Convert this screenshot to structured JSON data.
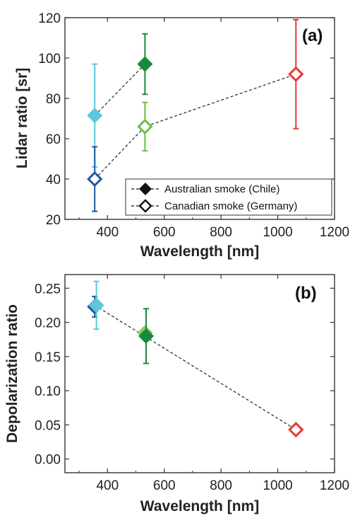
{
  "chart_data": [
    {
      "type": "scatter",
      "panel_label": "(a)",
      "xlabel": "Wavelength [nm]",
      "ylabel": "Lidar ratio [sr]",
      "xlim": [
        250,
        1200
      ],
      "ylim": [
        20,
        120
      ],
      "xticks": [
        400,
        600,
        800,
        1000,
        1200
      ],
      "yticks": [
        20,
        40,
        60,
        80,
        100,
        120
      ],
      "legend_position": "bottom-right",
      "series": [
        {
          "name": "Australian smoke (Chile)",
          "marker": "filled-diamond",
          "line": "dashed",
          "points": [
            {
              "x": 355,
              "y": 71.5,
              "err": 25.5,
              "color": "#5bc8dc"
            },
            {
              "x": 532,
              "y": 97,
              "err": 15,
              "color": "#178a3e"
            }
          ]
        },
        {
          "name": "Canadian smoke (Germany)",
          "marker": "open-diamond",
          "line": "dashed",
          "points": [
            {
              "x": 355,
              "y": 40,
              "err": 16,
              "color": "#2056a8"
            },
            {
              "x": 532,
              "y": 66,
              "err": 12,
              "color": "#6abf45"
            },
            {
              "x": 1064,
              "y": 92,
              "err": 27,
              "color": "#e53935"
            }
          ]
        }
      ]
    },
    {
      "type": "scatter",
      "panel_label": "(b)",
      "xlabel": "Wavelength [nm]",
      "ylabel": "Depolarization ratio",
      "xlim": [
        250,
        1200
      ],
      "ylim": [
        -0.02,
        0.27
      ],
      "xticks": [
        400,
        600,
        800,
        1000,
        1200
      ],
      "yticks": [
        "0.00",
        "0.05",
        "0.10",
        "0.15",
        "0.20",
        "0.25"
      ],
      "series": [
        {
          "name": "Australian smoke (Chile)",
          "marker": "filled-diamond",
          "line": "none",
          "points": [
            {
              "x": 355,
              "y": 0.223,
              "err": 0.015,
              "color": "#2056a8"
            },
            {
              "x": 361,
              "y": 0.225,
              "err": 0.035,
              "color": "#5bc8dc"
            },
            {
              "x": 532,
              "y": 0.185,
              "err": 0.0,
              "color": "#8fcf5a"
            },
            {
              "x": 536,
              "y": 0.18,
              "err": 0.04,
              "color": "#178a3e"
            }
          ]
        },
        {
          "name": "Canadian smoke (Germany)",
          "marker": "open-diamond",
          "line": "dashed",
          "points": [
            {
              "x": 1064,
              "y": 0.043,
              "err": 0.0,
              "color": "#e53935"
            }
          ]
        }
      ],
      "dashed_connector": [
        {
          "x": 355,
          "y": 0.225
        },
        {
          "x": 1064,
          "y": 0.043
        }
      ]
    }
  ]
}
